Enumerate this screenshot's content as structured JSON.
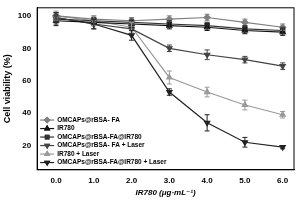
{
  "chart_data": {
    "type": "line",
    "x_label": "IR780 (μg·mL⁻¹)",
    "y_label": "Cell viability (%)",
    "x": [
      0,
      1,
      2,
      3,
      4,
      5,
      6
    ],
    "xlim": [
      -0.5,
      6.3
    ],
    "xticks": [
      {
        "value": 0,
        "label": "0.0"
      },
      {
        "value": 1,
        "label": "1.0"
      },
      {
        "value": 2,
        "label": "2.0"
      },
      {
        "value": 3,
        "label": "3.0"
      },
      {
        "value": 4,
        "label": "4.0"
      },
      {
        "value": 5,
        "label": "5.0"
      },
      {
        "value": 6,
        "label": "6.0"
      }
    ],
    "ylim": [
      5,
      105
    ],
    "yticks": [
      20,
      40,
      60,
      80,
      100
    ],
    "grid": false,
    "legend": "lower left",
    "series": [
      {
        "name": "OMCAPs@rBSA- FA",
        "color": "#7f7f7f",
        "marker": "diamond",
        "values": [
          100,
          98,
          97,
          98,
          99,
          96,
          93
        ],
        "errors": [
          2,
          2,
          2,
          2,
          2,
          2,
          2
        ]
      },
      {
        "name": "IR780",
        "color": "#111111",
        "marker": "triangle",
        "values": [
          97,
          96,
          95,
          94,
          93,
          91,
          90
        ],
        "errors": [
          3,
          2,
          2,
          2,
          2,
          2,
          2
        ]
      },
      {
        "name": "OMCAPs@rBSA-FA@IR780",
        "color": "#333333",
        "marker": "square",
        "values": [
          98,
          97,
          96,
          95,
          94,
          92,
          91
        ],
        "errors": [
          3,
          2,
          2,
          2,
          2,
          2,
          2
        ]
      },
      {
        "name": "OMCAPs@rBSA- FA + Laser",
        "color": "#444444",
        "marker": "triangle_down",
        "values": [
          99,
          95,
          92,
          80,
          76,
          73,
          69
        ],
        "errors": [
          3,
          3,
          3,
          2,
          3,
          2,
          2
        ]
      },
      {
        "name": "IR780 + Laser",
        "color": "#9a9a9a",
        "marker": "triangle",
        "values": [
          100,
          97,
          93,
          62,
          53,
          45,
          39
        ],
        "errors": [
          3,
          3,
          3,
          4,
          3,
          3,
          2
        ]
      },
      {
        "name": "OMCAPs@rBSA-FA@IR780 + Laser",
        "color": "#222222",
        "marker": "triangle_down",
        "values": [
          99,
          95,
          88,
          53,
          34,
          22,
          19
        ],
        "errors": [
          3,
          3,
          3,
          2,
          5,
          3,
          1
        ]
      }
    ]
  }
}
